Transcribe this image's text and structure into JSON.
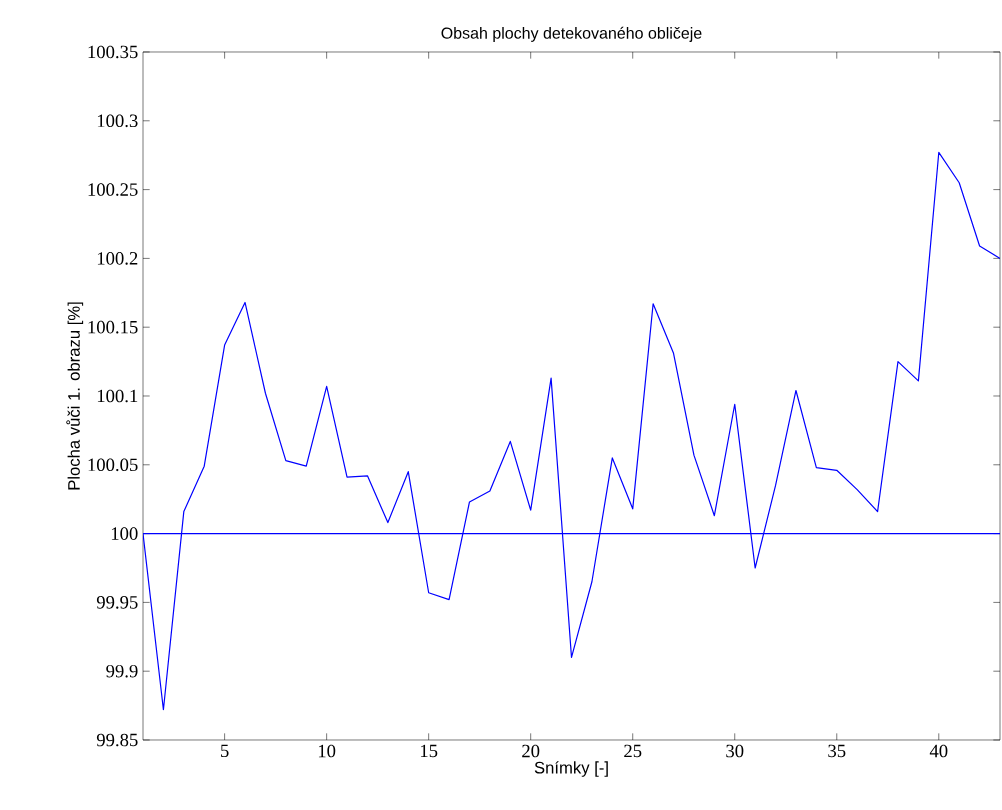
{
  "chart_data": {
    "type": "line",
    "title": "Obsah plochy detekovaného obličeje",
    "xlabel": "Snímky [-]",
    "ylabel": "Plocha vůči 1. obrazu [%]",
    "x": [
      1,
      2,
      3,
      4,
      5,
      6,
      7,
      8,
      9,
      10,
      11,
      12,
      13,
      14,
      15,
      16,
      17,
      18,
      19,
      20,
      21,
      22,
      23,
      24,
      25,
      26,
      27,
      28,
      29,
      30,
      31,
      32,
      33,
      34,
      35,
      36,
      37,
      38,
      39,
      40,
      41,
      42,
      43
    ],
    "series": [
      {
        "color": "#0000ff",
        "values": [
          100.0,
          99.872,
          100.016,
          100.049,
          100.137,
          100.168,
          100.102,
          100.053,
          100.049,
          100.107,
          100.041,
          100.042,
          100.008,
          100.045,
          99.957,
          99.952,
          100.023,
          100.031,
          100.067,
          100.017,
          100.113,
          99.91,
          99.965,
          100.055,
          100.018,
          100.167,
          100.131,
          100.057,
          100.013,
          100.094,
          99.975,
          100.035,
          100.104,
          100.048,
          100.046,
          100.032,
          100.016,
          100.125,
          100.111,
          100.277,
          100.255,
          100.209,
          100.2
        ]
      }
    ],
    "ref_lines": [
      {
        "axis": "y",
        "value": 100,
        "color": "#0000ff"
      }
    ],
    "xlim": [
      1,
      43
    ],
    "ylim": [
      99.85,
      100.35
    ],
    "xticks": [
      5,
      10,
      15,
      20,
      25,
      30,
      35,
      40
    ],
    "yticks": [
      99.85,
      99.9,
      99.95,
      100,
      100.05,
      100.1,
      100.15,
      100.2,
      100.25,
      100.3,
      100.35
    ],
    "grid": false,
    "marker": "none",
    "line_style": "solid"
  }
}
